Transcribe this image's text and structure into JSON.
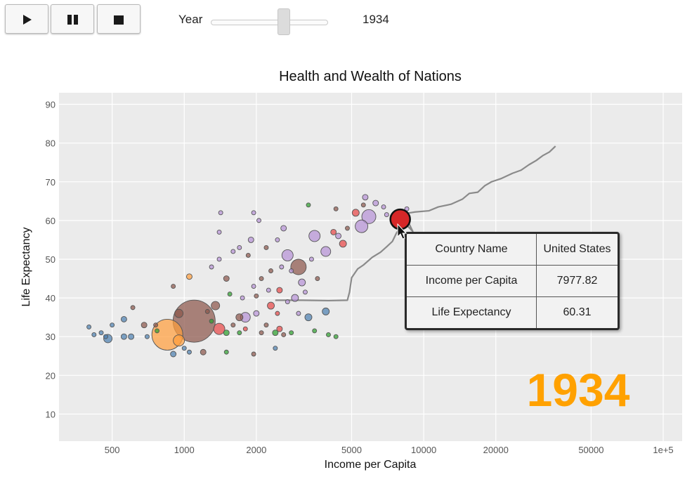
{
  "controls": {
    "play_icon": "play-icon",
    "pause_icon": "pause-icon",
    "stop_icon": "stop-icon",
    "year_label": "Year",
    "year_value": "1934",
    "slider_min": 1800,
    "slider_max": 2009,
    "slider_value": 1934
  },
  "tooltip": {
    "rows": [
      {
        "label": "Country Name",
        "value": "United States"
      },
      {
        "label": "Income per Capita",
        "value": "7977.82"
      },
      {
        "label": "Life Expectancy",
        "value": "60.31"
      }
    ]
  },
  "colors": {
    "accent_year": "#ffa100",
    "plot_bg": "#ebebeb",
    "grid": "#ffffff",
    "highlight": "#d62728",
    "trail": "#8a8a8a"
  },
  "chart_data": {
    "type": "scatter",
    "title": "Health and Wealth of Nations",
    "xlabel": "Income per Capita",
    "ylabel": "Life Expectancy",
    "xscale": "log",
    "xlim": [
      300,
      120000
    ],
    "ylim": [
      3,
      93
    ],
    "x_ticks": [
      500,
      1000,
      2000,
      5000,
      10000,
      20000,
      50000,
      100000
    ],
    "x_tick_labels": [
      "500",
      "1000",
      "2000",
      "5000",
      "10000",
      "20000",
      "50000",
      "1e+5"
    ],
    "y_ticks": [
      10,
      20,
      30,
      40,
      50,
      60,
      70,
      80,
      90
    ],
    "y_tick_labels": [
      "10",
      "20",
      "30",
      "40",
      "50",
      "60",
      "70",
      "80",
      "90"
    ],
    "grid": true,
    "year_overlay": "1934",
    "highlight": {
      "name": "United States",
      "x": 7977.82,
      "y": 60.31
    },
    "trail": [
      [
        2400,
        39.4
      ],
      [
        3100,
        39.4
      ],
      [
        4000,
        39.3
      ],
      [
        4800,
        39.4
      ],
      [
        4900,
        41.5
      ],
      [
        5000,
        45.2
      ],
      [
        5300,
        47.5
      ],
      [
        5600,
        48.5
      ],
      [
        6100,
        50.5
      ],
      [
        6600,
        51.8
      ],
      [
        7000,
        53.2
      ],
      [
        7400,
        54.6
      ],
      [
        7700,
        56.8
      ],
      [
        8000,
        58.3
      ],
      [
        8400,
        59.1
      ],
      [
        9000,
        57.2
      ],
      [
        8500,
        60.4
      ],
      [
        8400,
        61.8
      ],
      [
        9200,
        62.2
      ],
      [
        10500,
        62.5
      ],
      [
        11500,
        63.5
      ],
      [
        13000,
        64.2
      ],
      [
        14500,
        65.5
      ],
      [
        15500,
        67.0
      ],
      [
        16800,
        67.3
      ],
      [
        18000,
        69.0
      ],
      [
        19200,
        70.0
      ],
      [
        21000,
        70.8
      ],
      [
        23500,
        72.2
      ],
      [
        25500,
        73.0
      ],
      [
        27500,
        74.4
      ],
      [
        29500,
        75.5
      ],
      [
        31500,
        76.8
      ],
      [
        33500,
        77.7
      ],
      [
        35500,
        79.2
      ]
    ],
    "points": [
      {
        "x": 1100,
        "y": 34,
        "r": 30,
        "c": "#8c564b"
      },
      {
        "x": 850,
        "y": 30.5,
        "r": 22,
        "c": "#ff9e3d"
      },
      {
        "x": 3000,
        "y": 48,
        "r": 11,
        "c": "#8c564b"
      },
      {
        "x": 5900,
        "y": 61,
        "r": 10,
        "c": "#b592d6"
      },
      {
        "x": 5500,
        "y": 58.5,
        "r": 9,
        "c": "#b592d6"
      },
      {
        "x": 3500,
        "y": 56,
        "r": 8,
        "c": "#b592d6"
      },
      {
        "x": 2700,
        "y": 51,
        "r": 8,
        "c": "#b592d6"
      },
      {
        "x": 1800,
        "y": 35,
        "r": 7,
        "c": "#b592d6"
      },
      {
        "x": 3900,
        "y": 52,
        "r": 7,
        "c": "#b592d6"
      },
      {
        "x": 1400,
        "y": 32,
        "r": 8,
        "c": "#e84646"
      },
      {
        "x": 950,
        "y": 29,
        "r": 8,
        "c": "#ff9e3d"
      },
      {
        "x": 950,
        "y": 36,
        "r": 6,
        "c": "#8c564b"
      },
      {
        "x": 1350,
        "y": 38,
        "r": 6,
        "c": "#8c564b"
      },
      {
        "x": 480,
        "y": 29.5,
        "r": 6,
        "c": "#4c7fb0"
      },
      {
        "x": 3300,
        "y": 35,
        "r": 5,
        "c": "#4c7fb0"
      },
      {
        "x": 1700,
        "y": 35,
        "r": 5,
        "c": "#8c564b"
      },
      {
        "x": 2300,
        "y": 38,
        "r": 5,
        "c": "#e84646"
      },
      {
        "x": 4600,
        "y": 54,
        "r": 5,
        "c": "#e84646"
      },
      {
        "x": 5200,
        "y": 62,
        "r": 5,
        "c": "#e84646"
      },
      {
        "x": 5700,
        "y": 66,
        "r": 4,
        "c": "#b592d6"
      },
      {
        "x": 6300,
        "y": 64.5,
        "r": 4,
        "c": "#b592d6"
      },
      {
        "x": 3100,
        "y": 44,
        "r": 5,
        "c": "#b592d6"
      },
      {
        "x": 2900,
        "y": 40,
        "r": 5,
        "c": "#b592d6"
      },
      {
        "x": 2000,
        "y": 36,
        "r": 4,
        "c": "#b592d6"
      },
      {
        "x": 2500,
        "y": 32,
        "r": 4,
        "c": "#e84646"
      },
      {
        "x": 2400,
        "y": 31,
        "r": 4,
        "c": "#2ca02c"
      },
      {
        "x": 1500,
        "y": 31,
        "r": 4,
        "c": "#2ca02c"
      },
      {
        "x": 1200,
        "y": 26,
        "r": 4,
        "c": "#8c564b"
      },
      {
        "x": 900,
        "y": 25.5,
        "r": 4,
        "c": "#4c7fb0"
      },
      {
        "x": 1050,
        "y": 45.5,
        "r": 4,
        "c": "#ff9e3d"
      },
      {
        "x": 1500,
        "y": 45,
        "r": 4,
        "c": "#8c564b"
      },
      {
        "x": 1900,
        "y": 55,
        "r": 4,
        "c": "#b592d6"
      },
      {
        "x": 2600,
        "y": 58,
        "r": 4,
        "c": "#b592d6"
      },
      {
        "x": 4400,
        "y": 56,
        "r": 4,
        "c": "#b592d6"
      },
      {
        "x": 4200,
        "y": 57,
        "r": 4,
        "c": "#e84646"
      },
      {
        "x": 4800,
        "y": 58,
        "r": 3,
        "c": "#8c564b"
      },
      {
        "x": 2100,
        "y": 45,
        "r": 3,
        "c": "#8c564b"
      },
      {
        "x": 2250,
        "y": 42,
        "r": 3,
        "c": "#b592d6"
      },
      {
        "x": 1950,
        "y": 43,
        "r": 3,
        "c": "#b592d6"
      },
      {
        "x": 2550,
        "y": 48,
        "r": 3,
        "c": "#b592d6"
      },
      {
        "x": 3400,
        "y": 50,
        "r": 3,
        "c": "#b592d6"
      },
      {
        "x": 1600,
        "y": 52,
        "r": 3,
        "c": "#b592d6"
      },
      {
        "x": 2800,
        "y": 47,
        "r": 3,
        "c": "#b592d6"
      },
      {
        "x": 1400,
        "y": 57,
        "r": 3,
        "c": "#b592d6"
      },
      {
        "x": 1420,
        "y": 62,
        "r": 3,
        "c": "#b592d6"
      },
      {
        "x": 1950,
        "y": 62,
        "r": 3,
        "c": "#b592d6"
      },
      {
        "x": 2050,
        "y": 60,
        "r": 3,
        "c": "#b592d6"
      },
      {
        "x": 2450,
        "y": 55,
        "r": 3,
        "c": "#b592d6"
      },
      {
        "x": 3300,
        "y": 64,
        "r": 3,
        "c": "#2ca02c"
      },
      {
        "x": 4300,
        "y": 63,
        "r": 3,
        "c": "#8c564b"
      },
      {
        "x": 5600,
        "y": 64,
        "r": 3,
        "c": "#8c564b"
      },
      {
        "x": 6800,
        "y": 63.5,
        "r": 3,
        "c": "#b592d6"
      },
      {
        "x": 7000,
        "y": 61.5,
        "r": 3,
        "c": "#b592d6"
      },
      {
        "x": 8500,
        "y": 63,
        "r": 3,
        "c": "#b592d6"
      },
      {
        "x": 680,
        "y": 33,
        "r": 4,
        "c": "#8c564b"
      },
      {
        "x": 560,
        "y": 34.5,
        "r": 4,
        "c": "#4c7fb0"
      },
      {
        "x": 600,
        "y": 30,
        "r": 4,
        "c": "#4c7fb0"
      },
      {
        "x": 500,
        "y": 33,
        "r": 3,
        "c": "#4c7fb0"
      },
      {
        "x": 450,
        "y": 31,
        "r": 3,
        "c": "#4c7fb0"
      },
      {
        "x": 470,
        "y": 30,
        "r": 3,
        "c": "#4c7fb0"
      },
      {
        "x": 400,
        "y": 32.5,
        "r": 3,
        "c": "#4c7fb0"
      },
      {
        "x": 420,
        "y": 30.5,
        "r": 3,
        "c": "#4c7fb0"
      },
      {
        "x": 560,
        "y": 30,
        "r": 4,
        "c": "#4c7fb0"
      },
      {
        "x": 610,
        "y": 37.5,
        "r": 3,
        "c": "#8c564b"
      },
      {
        "x": 760,
        "y": 33,
        "r": 3,
        "c": "#8c564b"
      },
      {
        "x": 770,
        "y": 31.5,
        "r": 3,
        "c": "#2ca02c"
      },
      {
        "x": 700,
        "y": 30,
        "r": 3,
        "c": "#4c7fb0"
      },
      {
        "x": 900,
        "y": 43,
        "r": 3,
        "c": "#8c564b"
      },
      {
        "x": 1250,
        "y": 36.5,
        "r": 3,
        "c": "#8c564b"
      },
      {
        "x": 1300,
        "y": 34,
        "r": 3,
        "c": "#2ca02c"
      },
      {
        "x": 1600,
        "y": 33,
        "r": 3,
        "c": "#8c564b"
      },
      {
        "x": 1700,
        "y": 31,
        "r": 3,
        "c": "#2ca02c"
      },
      {
        "x": 1800,
        "y": 32,
        "r": 3,
        "c": "#e84646"
      },
      {
        "x": 2100,
        "y": 31,
        "r": 3,
        "c": "#8c564b"
      },
      {
        "x": 2200,
        "y": 33,
        "r": 3,
        "c": "#8c564b"
      },
      {
        "x": 2600,
        "y": 30.5,
        "r": 3,
        "c": "#8c564b"
      },
      {
        "x": 2800,
        "y": 31,
        "r": 3,
        "c": "#2ca02c"
      },
      {
        "x": 3500,
        "y": 31.5,
        "r": 3,
        "c": "#2ca02c"
      },
      {
        "x": 4000,
        "y": 30.5,
        "r": 3,
        "c": "#2ca02c"
      },
      {
        "x": 4300,
        "y": 30,
        "r": 3,
        "c": "#2ca02c"
      },
      {
        "x": 1000,
        "y": 27,
        "r": 3,
        "c": "#4c7fb0"
      },
      {
        "x": 1050,
        "y": 26,
        "r": 3,
        "c": "#4c7fb0"
      },
      {
        "x": 1500,
        "y": 26,
        "r": 3,
        "c": "#2ca02c"
      },
      {
        "x": 1950,
        "y": 25.5,
        "r": 3,
        "c": "#8c564b"
      },
      {
        "x": 2400,
        "y": 27,
        "r": 3,
        "c": "#4c7fb0"
      },
      {
        "x": 2500,
        "y": 42,
        "r": 4,
        "c": "#e84646"
      },
      {
        "x": 2700,
        "y": 39,
        "r": 3,
        "c": "#b592d6"
      },
      {
        "x": 3200,
        "y": 41.5,
        "r": 3,
        "c": "#b592d6"
      },
      {
        "x": 3600,
        "y": 45,
        "r": 3,
        "c": "#8c564b"
      },
      {
        "x": 2300,
        "y": 47,
        "r": 3,
        "c": "#8c564b"
      },
      {
        "x": 2200,
        "y": 53,
        "r": 3,
        "c": "#8c564b"
      },
      {
        "x": 1850,
        "y": 51,
        "r": 3,
        "c": "#8c564b"
      },
      {
        "x": 1700,
        "y": 53,
        "r": 3,
        "c": "#b592d6"
      },
      {
        "x": 1400,
        "y": 50,
        "r": 3,
        "c": "#b592d6"
      },
      {
        "x": 1300,
        "y": 48,
        "r": 3,
        "c": "#b592d6"
      },
      {
        "x": 1550,
        "y": 41,
        "r": 3,
        "c": "#2ca02c"
      },
      {
        "x": 1750,
        "y": 40,
        "r": 3,
        "c": "#b592d6"
      },
      {
        "x": 2000,
        "y": 40.5,
        "r": 3,
        "c": "#8c564b"
      },
      {
        "x": 2450,
        "y": 36,
        "r": 3,
        "c": "#e84646"
      },
      {
        "x": 3000,
        "y": 36,
        "r": 3,
        "c": "#b592d6"
      },
      {
        "x": 3900,
        "y": 36.5,
        "r": 5,
        "c": "#4c7fb0"
      }
    ]
  }
}
